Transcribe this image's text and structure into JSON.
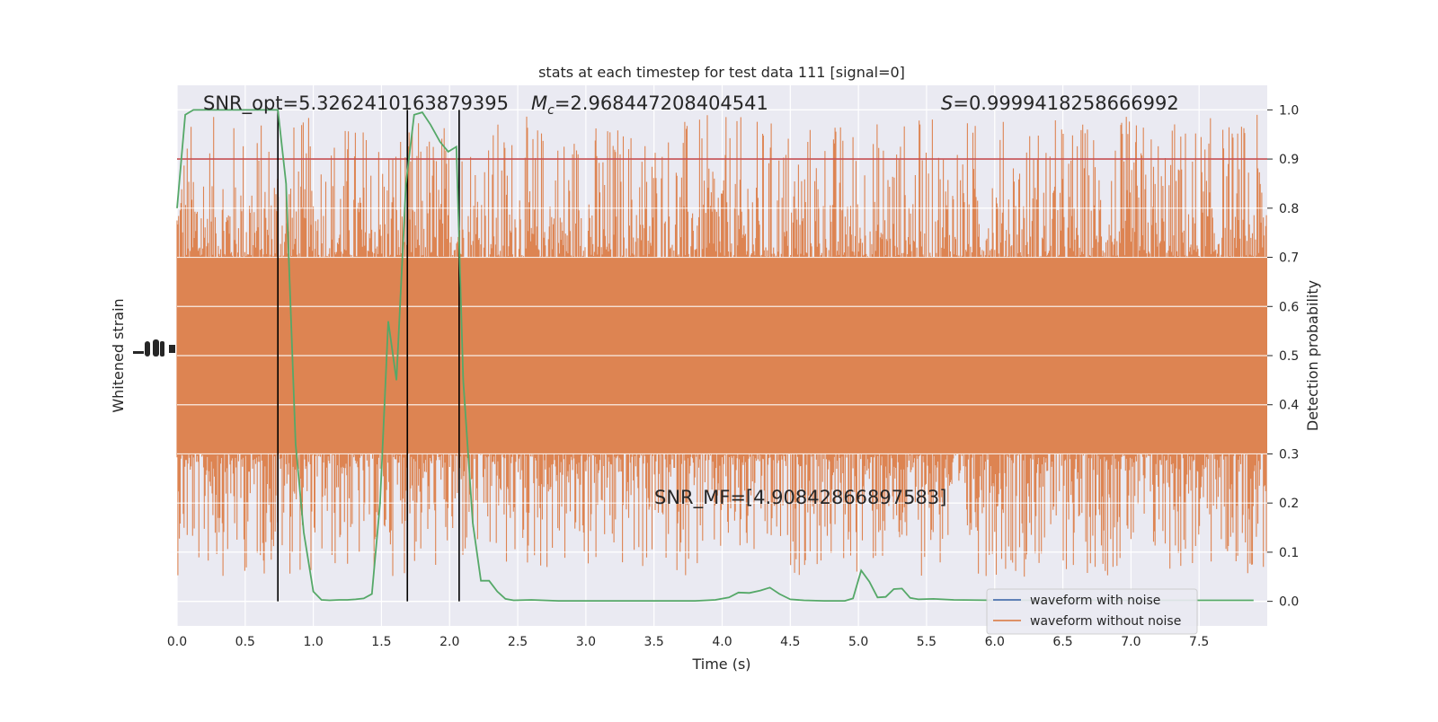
{
  "chart_data": {
    "type": "line",
    "title": "stats at each timestep for test data 111 [signal=0]",
    "xlabel": "Time (s)",
    "ylabel_left": "Whitened strain",
    "ylabel_right": "Detection probability",
    "xlim": [
      0.0,
      8.0
    ],
    "ylim_right": [
      -0.05,
      1.05
    ],
    "grid": true,
    "x_ticks": [
      "0.0",
      "0.5",
      "1.0",
      "1.5",
      "2.0",
      "2.5",
      "3.0",
      "3.5",
      "4.0",
      "4.5",
      "5.0",
      "5.5",
      "6.0",
      "6.5",
      "7.0",
      "7.5"
    ],
    "y_ticks_right": [
      "0.0",
      "0.1",
      "0.2",
      "0.3",
      "0.4",
      "0.5",
      "0.6",
      "0.7",
      "0.8",
      "0.9",
      "1.0"
    ],
    "annotations": {
      "snr_opt": "SNR_opt=5.3262410163879395",
      "mc_symbol": "M",
      "mc_sub": "c",
      "mc_value": "=2.968447208404541",
      "s_symbol": "S",
      "s_value": "=0.9999418258666992",
      "snr_mf": "SNR_MF=[4.90842866897583]"
    },
    "threshold": 0.9,
    "vertical_lines_x": [
      0.74,
      1.69,
      2.07
    ],
    "legend": {
      "position": "lower-right",
      "entries": [
        {
          "label": "waveform with noise",
          "color": "#4c72b0"
        },
        {
          "label": "waveform without noise",
          "color": "#dd8452"
        }
      ]
    },
    "series": [
      {
        "role": "detection probability",
        "color": "#55a868",
        "x": [
          0.0,
          0.06,
          0.12,
          0.25,
          0.37,
          0.5,
          0.62,
          0.74,
          0.8,
          0.87,
          0.93,
          1.0,
          1.06,
          1.12,
          1.19,
          1.25,
          1.31,
          1.37,
          1.43,
          1.49,
          1.55,
          1.61,
          1.68,
          1.74,
          1.8,
          1.86,
          1.93,
          1.99,
          2.05,
          2.1,
          2.17,
          2.23,
          2.29,
          2.35,
          2.41,
          2.47,
          2.6,
          2.8,
          3.0,
          3.2,
          3.4,
          3.6,
          3.8,
          3.95,
          4.05,
          4.12,
          4.2,
          4.28,
          4.35,
          4.42,
          4.5,
          4.6,
          4.75,
          4.9,
          4.96,
          5.02,
          5.08,
          5.14,
          5.2,
          5.26,
          5.32,
          5.38,
          5.44,
          5.55,
          5.7,
          6.0,
          6.5,
          7.0,
          7.3,
          7.5,
          7.7,
          7.9
        ],
        "y": [
          0.8,
          0.99,
          1.0,
          1.0,
          1.0,
          1.0,
          1.0,
          1.0,
          0.85,
          0.32,
          0.14,
          0.02,
          0.003,
          0.002,
          0.003,
          0.003,
          0.004,
          0.006,
          0.015,
          0.2,
          0.57,
          0.45,
          0.85,
          0.99,
          0.995,
          0.97,
          0.935,
          0.915,
          0.925,
          0.45,
          0.16,
          0.042,
          0.042,
          0.02,
          0.005,
          0.002,
          0.003,
          0.001,
          0.001,
          0.001,
          0.001,
          0.001,
          0.001,
          0.003,
          0.008,
          0.018,
          0.017,
          0.022,
          0.028,
          0.015,
          0.004,
          0.002,
          0.001,
          0.001,
          0.006,
          0.063,
          0.04,
          0.008,
          0.009,
          0.025,
          0.026,
          0.007,
          0.004,
          0.005,
          0.003,
          0.002,
          0.002,
          0.002,
          0.002,
          0.002,
          0.002,
          0.002
        ]
      },
      {
        "role": "waveform without noise",
        "color": "#dd8452",
        "amplitude_range_on_right_axis": [
          0.05,
          0.99
        ],
        "note_visible_band": [
          0.3,
          0.7
        ]
      }
    ]
  }
}
